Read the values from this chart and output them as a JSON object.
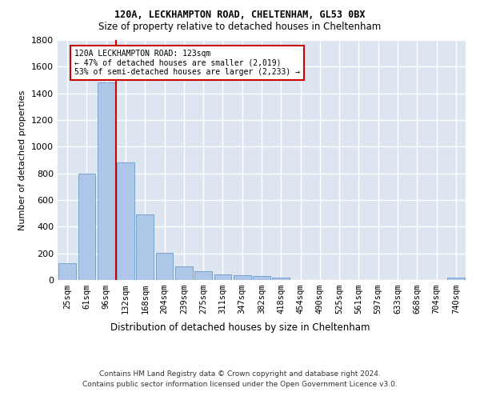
{
  "title1": "120A, LECKHAMPTON ROAD, CHELTENHAM, GL53 0BX",
  "title2": "Size of property relative to detached houses in Cheltenham",
  "xlabel": "Distribution of detached houses by size in Cheltenham",
  "ylabel": "Number of detached properties",
  "categories": [
    "25sqm",
    "61sqm",
    "96sqm",
    "132sqm",
    "168sqm",
    "204sqm",
    "239sqm",
    "275sqm",
    "311sqm",
    "347sqm",
    "382sqm",
    "418sqm",
    "454sqm",
    "490sqm",
    "525sqm",
    "561sqm",
    "597sqm",
    "633sqm",
    "668sqm",
    "704sqm",
    "740sqm"
  ],
  "values": [
    125,
    800,
    1480,
    885,
    490,
    205,
    105,
    65,
    40,
    35,
    30,
    20,
    0,
    0,
    0,
    0,
    0,
    0,
    0,
    0,
    18
  ],
  "bar_color": "#aec6e8",
  "bar_edge_color": "#5a8fc2",
  "background_color": "#dde6f0",
  "grid_color": "#ffffff",
  "property_line_x": 2.5,
  "annotation_text": "120A LECKHAMPTON ROAD: 123sqm\n← 47% of detached houses are smaller (2,019)\n53% of semi-detached houses are larger (2,233) →",
  "annotation_box_color": "#ffffff",
  "annotation_box_edge": "#cc0000",
  "vline_color": "#cc0000",
  "ylim": [
    0,
    1800
  ],
  "yticks": [
    0,
    200,
    400,
    600,
    800,
    1000,
    1200,
    1400,
    1600,
    1800
  ],
  "footer1": "Contains HM Land Registry data © Crown copyright and database right 2024.",
  "footer2": "Contains public sector information licensed under the Open Government Licence v3.0."
}
